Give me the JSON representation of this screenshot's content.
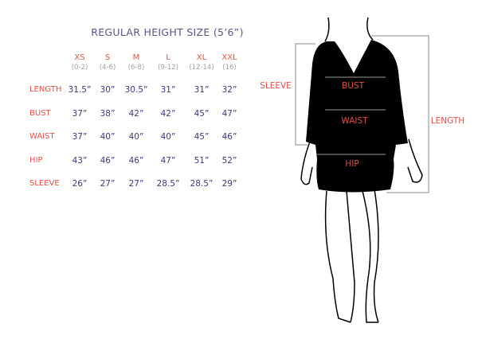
{
  "title": "REGULAR HEIGHT SIZE (5’6”)",
  "sizes": [
    {
      "label": "XS",
      "range": "(0-2)"
    },
    {
      "label": "S",
      "range": "(4-6)"
    },
    {
      "label": "M",
      "range": "(6-8)"
    },
    {
      "label": "L",
      "range": "(9-12)"
    },
    {
      "label": "XL",
      "range": "(12-14)"
    },
    {
      "label": "XXL",
      "range": "(16)"
    }
  ],
  "rows": [
    {
      "label": "LENGTH",
      "values": [
        "31.5”",
        "30”",
        "30.5”",
        "31”",
        "31”",
        "32”"
      ]
    },
    {
      "label": "BUST",
      "values": [
        "37”",
        "38”",
        "42”",
        "42”",
        "45”",
        "47”"
      ]
    },
    {
      "label": "WAIST",
      "values": [
        "37”",
        "40”",
        "40”",
        "40”",
        "45”",
        "46”"
      ]
    },
    {
      "label": "HIP",
      "values": [
        "43”",
        "46”",
        "46”",
        "47”",
        "51”",
        "52”"
      ]
    },
    {
      "label": "SLEEVE",
      "values": [
        "26”",
        "27”",
        "27”",
        "28.5”",
        "28.5”",
        "29”"
      ]
    }
  ],
  "figure": {
    "bust": "BUST",
    "waist": "WAIST",
    "hip": "HIP",
    "sleeve": "SLEEVE",
    "length": "LENGTH"
  },
  "colors": {
    "label": "#e0524a",
    "value": "#3a3a7a",
    "title": "#55558a"
  }
}
